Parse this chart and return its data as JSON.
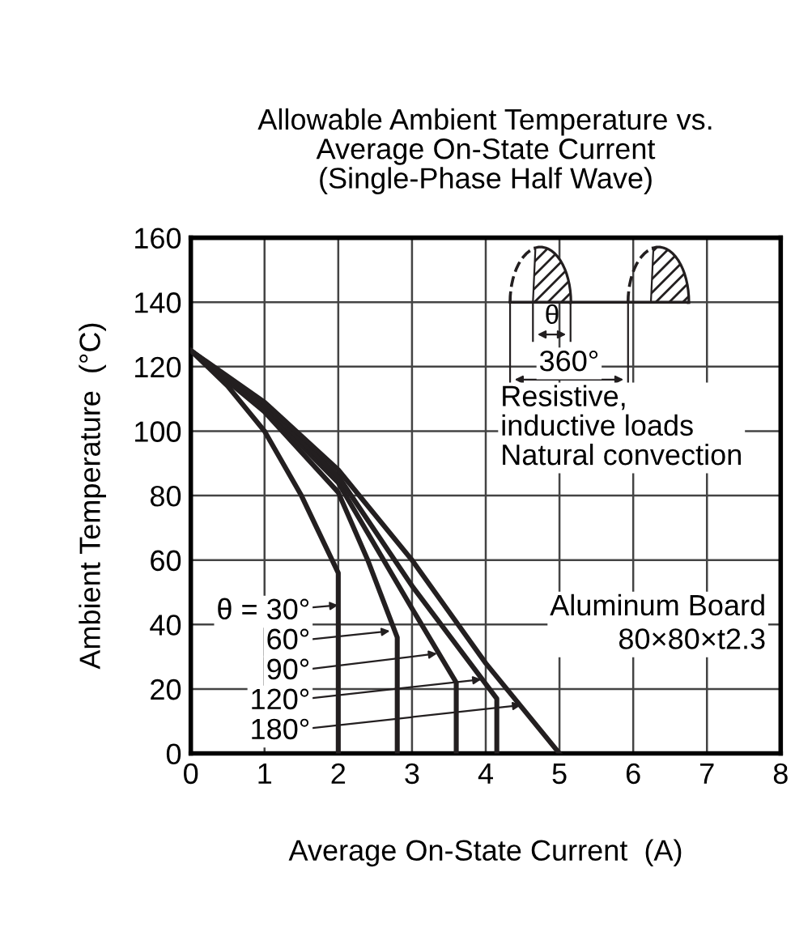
{
  "chart_data": {
    "type": "line",
    "title": "Allowable Ambient Temperature vs.\nAverage On-State Current\n(Single-Phase Half Wave)",
    "xlabel": "Average On-State Current  (A)",
    "ylabel": "Ambient Temperature  (°C)",
    "xlim": [
      0,
      8
    ],
    "ylim": [
      0,
      160
    ],
    "xticks": [
      0,
      1,
      2,
      3,
      4,
      5,
      6,
      7,
      8
    ],
    "yticks": [
      0,
      20,
      40,
      60,
      80,
      100,
      120,
      140,
      160
    ],
    "grid": true,
    "legend": false,
    "marker": "none",
    "line_style": "solid",
    "series": [
      {
        "color": "#231f20",
        "x": [
          0,
          0.5,
          1,
          1.5,
          2,
          2
        ],
        "values": [
          125,
          114,
          100,
          80,
          56,
          0
        ]
      },
      {
        "color": "#231f20",
        "x": [
          0,
          1,
          2,
          2.4,
          2.8,
          2.8
        ],
        "values": [
          125,
          106,
          81,
          60,
          36,
          0
        ]
      },
      {
        "color": "#231f20",
        "x": [
          0,
          1,
          2,
          3,
          3.6,
          3.6
        ],
        "values": [
          125,
          107,
          84,
          45,
          22,
          0
        ]
      },
      {
        "color": "#231f20",
        "x": [
          0,
          1,
          2,
          3,
          4.15,
          4.15
        ],
        "values": [
          125,
          108,
          86,
          52,
          17,
          0
        ]
      },
      {
        "color": "#231f20",
        "x": [
          0,
          1,
          2,
          3,
          4,
          5
        ],
        "values": [
          125,
          109,
          88,
          60,
          28,
          0
        ]
      }
    ],
    "annotations": [
      {
        "text": "θ = 30°",
        "x": 2,
        "y": 46
      },
      {
        "text": "60°",
        "x": 2.7,
        "y": 38
      },
      {
        "text": "90°",
        "x": 3.34,
        "y": 31
      },
      {
        "text": "120°",
        "x": 3.94,
        "y": 23
      },
      {
        "text": "180°",
        "x": 4.48,
        "y": 15
      },
      "θ",
      "360°",
      "Resistive,\ninductive loads\nNatural convection",
      "Aluminum Board\n80×80×t2.3"
    ]
  }
}
